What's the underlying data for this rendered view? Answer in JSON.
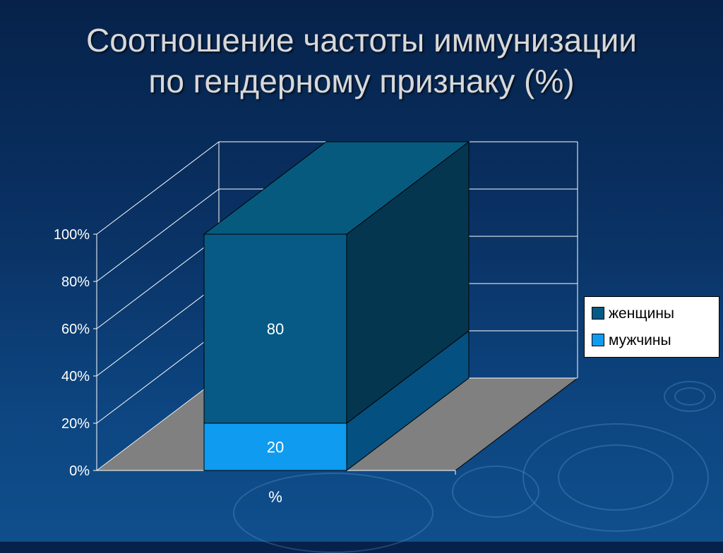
{
  "title": {
    "line1": "Соотношение частоты иммунизации",
    "line2": "по гендерному признаку (%)"
  },
  "chart_data": {
    "type": "bar",
    "stacked": true,
    "three_d": true,
    "categories": [
      "%"
    ],
    "series": [
      {
        "name": "мужчины",
        "values": [
          20
        ],
        "color": "#0e9bf0"
      },
      {
        "name": "женщины",
        "values": [
          80
        ],
        "color": "#075a86"
      }
    ],
    "y_ticks": [
      "0%",
      "20%",
      "40%",
      "60%",
      "80%",
      "100%"
    ],
    "ylim": [
      0,
      100
    ],
    "grid": true,
    "legend_position": "right",
    "data_labels": [
      "20",
      "80"
    ]
  },
  "legend": {
    "items": [
      {
        "label": "женщины",
        "color": "#075a86"
      },
      {
        "label": "мужчины",
        "color": "#0e9bf0"
      }
    ]
  }
}
